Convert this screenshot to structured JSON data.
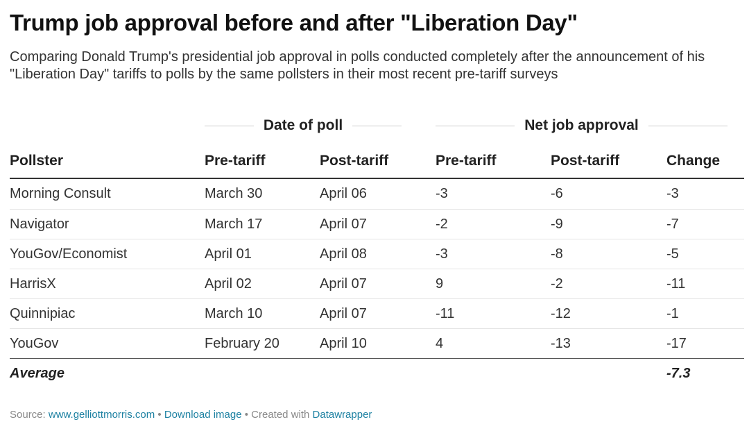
{
  "title": "Trump job approval before and after \"Liberation Day\"",
  "description": "Comparing Donald Trump's presidential job approval in polls conducted completely after the announcement of his \"Liberation Day\" tariffs to polls by the same pollsters in their most recent pre-tariff surveys",
  "column_groups": {
    "date": "Date of poll",
    "net": "Net job approval"
  },
  "columns": [
    "Pollster",
    "Pre-tariff",
    "Post-tariff",
    "Pre-tariff",
    "Post-tariff",
    "Change"
  ],
  "footer": {
    "label": "Average",
    "change": "-7.3"
  },
  "source": {
    "prefix": "Source: ",
    "site": "www.gelliottmorris.com",
    "sep1": " • ",
    "download": "Download image",
    "sep2": " • Created with ",
    "tool": "Datawrapper"
  },
  "chart_data": {
    "type": "table",
    "title": "Trump job approval before and after \"Liberation Day\"",
    "rows": [
      {
        "pollster": "Morning Consult",
        "pre_date": "March 30",
        "post_date": "April 06",
        "pre_net": "-3",
        "post_net": "-6",
        "change": "-3"
      },
      {
        "pollster": "Navigator",
        "pre_date": "March 17",
        "post_date": "April 07",
        "pre_net": "-2",
        "post_net": "-9",
        "change": "-7"
      },
      {
        "pollster": "YouGov/Economist",
        "pre_date": "April 01",
        "post_date": "April 08",
        "pre_net": "-3",
        "post_net": "-8",
        "change": "-5"
      },
      {
        "pollster": "HarrisX",
        "pre_date": "April 02",
        "post_date": "April 07",
        "pre_net": "9",
        "post_net": "-2",
        "change": "-11"
      },
      {
        "pollster": "Quinnipiac",
        "pre_date": "March 10",
        "post_date": "April 07",
        "pre_net": "-11",
        "post_net": "-12",
        "change": "-1"
      },
      {
        "pollster": "YouGov",
        "pre_date": "February 20",
        "post_date": "April 10",
        "pre_net": "4",
        "post_net": "-13",
        "change": "-17"
      }
    ]
  }
}
